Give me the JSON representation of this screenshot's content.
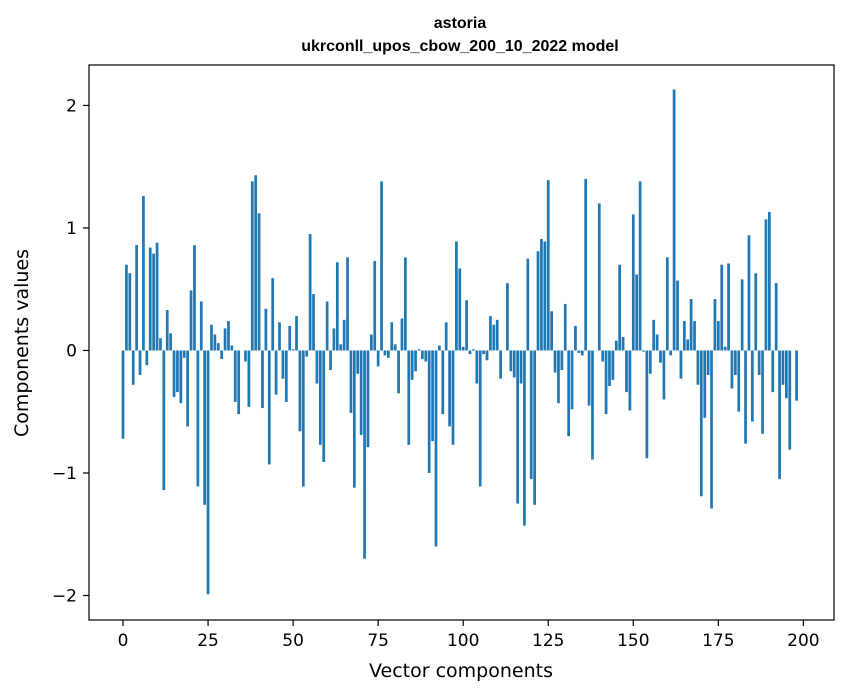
{
  "chart_data": {
    "type": "bar",
    "title": "astoria",
    "subtitle": "ukrconll_upos_cbow_200_10_2022 model",
    "xlabel": "Vector components",
    "ylabel": "Components values",
    "xlim": [
      -10,
      209
    ],
    "ylim": [
      -2.2,
      2.33
    ],
    "xticks": [
      0,
      25,
      50,
      75,
      100,
      125,
      150,
      175,
      200
    ],
    "yticks": [
      -2,
      -1,
      0,
      1,
      2
    ],
    "ytick_labels": [
      "−2",
      "−1",
      "0",
      "1",
      "2"
    ],
    "grid": false,
    "color": "#1f77b4",
    "values": [
      -0.72,
      0.7,
      0.63,
      -0.28,
      0.86,
      -0.2,
      1.26,
      -0.12,
      0.84,
      0.79,
      0.88,
      0.1,
      -1.14,
      0.33,
      0.14,
      -0.38,
      -0.34,
      -0.43,
      -0.06,
      -0.62,
      0.49,
      0.86,
      -1.11,
      0.4,
      -1.26,
      -1.99,
      0.21,
      0.13,
      0.06,
      -0.07,
      0.18,
      0.24,
      0.04,
      -0.42,
      -0.52,
      0.0,
      -0.09,
      -0.46,
      1.38,
      1.43,
      1.12,
      -0.47,
      0.34,
      -0.93,
      0.59,
      -0.36,
      0.23,
      -0.23,
      -0.42,
      0.2,
      0.01,
      0.28,
      -0.66,
      -1.11,
      -0.05,
      0.95,
      0.46,
      -0.27,
      -0.77,
      -0.91,
      0.4,
      -0.16,
      0.18,
      0.72,
      0.05,
      0.25,
      0.76,
      -0.51,
      -1.12,
      -0.19,
      -0.69,
      -1.7,
      -0.79,
      0.13,
      0.73,
      -0.13,
      1.38,
      -0.04,
      -0.06,
      0.23,
      0.05,
      -0.35,
      0.26,
      0.76,
      -0.77,
      -0.24,
      -0.17,
      0.01,
      -0.07,
      -0.09,
      -1.0,
      -0.74,
      -1.6,
      0.04,
      -0.52,
      0.23,
      -0.62,
      -0.77,
      0.89,
      0.67,
      0.03,
      0.41,
      -0.03,
      0.01,
      -0.27,
      -1.11,
      -0.03,
      -0.08,
      0.28,
      0.21,
      0.25,
      -0.23,
      0.0,
      0.55,
      -0.17,
      -0.22,
      -1.25,
      -0.27,
      -1.43,
      0.75,
      -1.05,
      -1.26,
      0.81,
      0.91,
      0.89,
      1.39,
      0.32,
      -0.18,
      -0.43,
      -0.16,
      0.38,
      -0.7,
      -0.48,
      0.2,
      -0.02,
      -0.04,
      1.4,
      -0.45,
      -0.89,
      0.0,
      1.2,
      -0.09,
      -0.52,
      -0.29,
      -0.24,
      0.08,
      0.7,
      0.11,
      -0.34,
      -0.49,
      1.11,
      0.62,
      1.38,
      -0.01,
      -0.88,
      -0.19,
      0.25,
      0.13,
      -0.1,
      -0.4,
      0.76,
      -0.04,
      2.13,
      0.57,
      -0.23,
      0.24,
      0.09,
      0.42,
      0.24,
      -0.28,
      -1.19,
      -0.55,
      -0.2,
      -1.29,
      0.42,
      0.24,
      0.7,
      0.03,
      0.71,
      -0.31,
      -0.2,
      -0.5,
      0.58,
      -0.76,
      0.94,
      -0.58,
      0.63,
      -0.2,
      -0.68,
      1.07,
      1.13,
      -0.34,
      0.55,
      -1.05,
      -0.28,
      -0.39,
      -0.81,
      0.0,
      -0.41,
      0.0
    ]
  }
}
